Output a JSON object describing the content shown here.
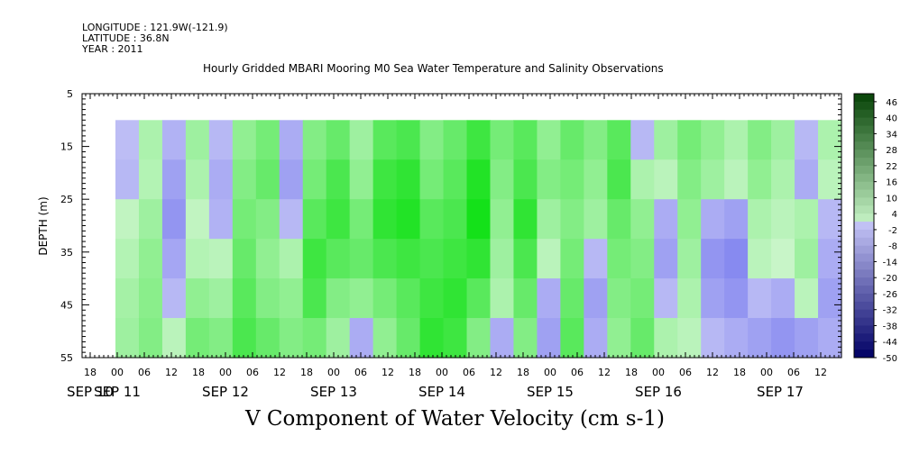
{
  "header": {
    "longitude": "LONGITUDE : 121.9W(-121.9)",
    "latitude": "LATITUDE : 36.8N",
    "year": "YEAR : 2011"
  },
  "chart_data": {
    "type": "heatmap",
    "title": "Hourly Gridded MBARI Mooring M0 Sea Water Temperature and Salinity Observations",
    "xlabel": "V Component of Water Velocity (cm s-1)",
    "ylabel": "DEPTH (m)",
    "ylim": [
      55,
      5
    ],
    "y_ticks": [
      "5",
      "15",
      "25",
      "35",
      "45",
      "55"
    ],
    "x_hour_ticks": [
      "18",
      "00",
      "06",
      "12",
      "18",
      "00",
      "06",
      "12",
      "18",
      "00",
      "06",
      "12",
      "18",
      "00",
      "06",
      "12",
      "18",
      "00",
      "06",
      "12",
      "18",
      "00",
      "06",
      "12",
      "18",
      "00",
      "06",
      "12"
    ],
    "x_date_labels": [
      "SEP 10",
      "SEP 11",
      "SEP 12",
      "SEP 13",
      "SEP 14",
      "SEP 15",
      "SEP 16",
      "SEP 17"
    ],
    "data_depth_range": [
      10,
      55
    ],
    "colorbar": {
      "labels": [
        "46",
        "40",
        "34",
        "28",
        "22",
        "16",
        "10",
        "4",
        "-2",
        "-8",
        "-14",
        "-20",
        "-26",
        "-32",
        "-38",
        "-44",
        "-50"
      ],
      "min": -50,
      "max": 49
    },
    "columns": [
      {
        "day": "SEP 10 00",
        "v": [
          -1,
          -2,
          1,
          3,
          5,
          6
        ]
      },
      {
        "day": "SEP 10 06",
        "v": [
          4,
          3,
          6,
          8,
          9,
          10
        ]
      },
      {
        "day": "SEP 10 12",
        "v": [
          -3,
          -6,
          -8,
          -5,
          -2,
          2
        ]
      },
      {
        "day": "SEP 10 18",
        "v": [
          6,
          4,
          1,
          3,
          8,
          12
        ]
      },
      {
        "day": "SEP 11 00",
        "v": [
          -2,
          -4,
          -3,
          2,
          6,
          10
        ]
      },
      {
        "day": "SEP 11 06",
        "v": [
          8,
          10,
          12,
          14,
          16,
          18
        ]
      },
      {
        "day": "SEP 11 12",
        "v": [
          12,
          14,
          10,
          8,
          10,
          14
        ]
      },
      {
        "day": "SEP 11 18",
        "v": [
          -4,
          -6,
          -2,
          4,
          8,
          10
        ]
      },
      {
        "day": "SEP 12 00",
        "v": [
          10,
          12,
          16,
          20,
          18,
          12
        ]
      },
      {
        "day": "SEP 12 06",
        "v": [
          14,
          18,
          20,
          16,
          10,
          6
        ]
      },
      {
        "day": "SEP 12 12",
        "v": [
          6,
          8,
          12,
          14,
          8,
          -4
        ]
      },
      {
        "day": "SEP 12 18",
        "v": [
          16,
          20,
          22,
          18,
          12,
          8
        ]
      },
      {
        "day": "SEP 13 00",
        "v": [
          18,
          22,
          24,
          20,
          16,
          14
        ]
      },
      {
        "day": "SEP 13 06",
        "v": [
          10,
          12,
          16,
          18,
          20,
          22
        ]
      },
      {
        "day": "SEP 13 12",
        "v": [
          14,
          16,
          18,
          20,
          22,
          20
        ]
      },
      {
        "day": "SEP 13 18",
        "v": [
          20,
          24,
          26,
          22,
          16,
          10
        ]
      },
      {
        "day": "SEP 14 00",
        "v": [
          12,
          10,
          8,
          6,
          4,
          -4
        ]
      },
      {
        "day": "SEP 14 06",
        "v": [
          16,
          18,
          22,
          18,
          14,
          10
        ]
      },
      {
        "day": "SEP 14 12",
        "v": [
          8,
          10,
          6,
          2,
          -4,
          -6
        ]
      },
      {
        "day": "SEP 14 18",
        "v": [
          14,
          12,
          10,
          12,
          14,
          16
        ]
      },
      {
        "day": "SEP 15 00",
        "v": [
          10,
          8,
          6,
          -2,
          -6,
          -4
        ]
      },
      {
        "day": "SEP 15 06",
        "v": [
          16,
          18,
          14,
          12,
          10,
          8
        ]
      },
      {
        "day": "SEP 15 12",
        "v": [
          -2,
          4,
          8,
          10,
          12,
          14
        ]
      },
      {
        "day": "SEP 15 18",
        "v": [
          6,
          2,
          -4,
          -6,
          -2,
          4
        ]
      },
      {
        "day": "SEP 16 00",
        "v": [
          12,
          10,
          8,
          6,
          4,
          2
        ]
      },
      {
        "day": "SEP 16 06",
        "v": [
          8,
          6,
          -4,
          -8,
          -6,
          -2
        ]
      },
      {
        "day": "SEP 16 12",
        "v": [
          4,
          2,
          -6,
          -10,
          -8,
          -4
        ]
      },
      {
        "day": "SEP 16 18",
        "v": [
          10,
          8,
          4,
          2,
          -2,
          -6
        ]
      },
      {
        "day": "SEP 17 00",
        "v": [
          6,
          4,
          2,
          0,
          -4,
          -8
        ]
      },
      {
        "day": "SEP 17 06",
        "v": [
          -2,
          -4,
          4,
          6,
          2,
          -6
        ]
      },
      {
        "day": "SEP 17 12",
        "v": [
          4,
          2,
          -2,
          -4,
          -6,
          -4
        ]
      }
    ]
  }
}
